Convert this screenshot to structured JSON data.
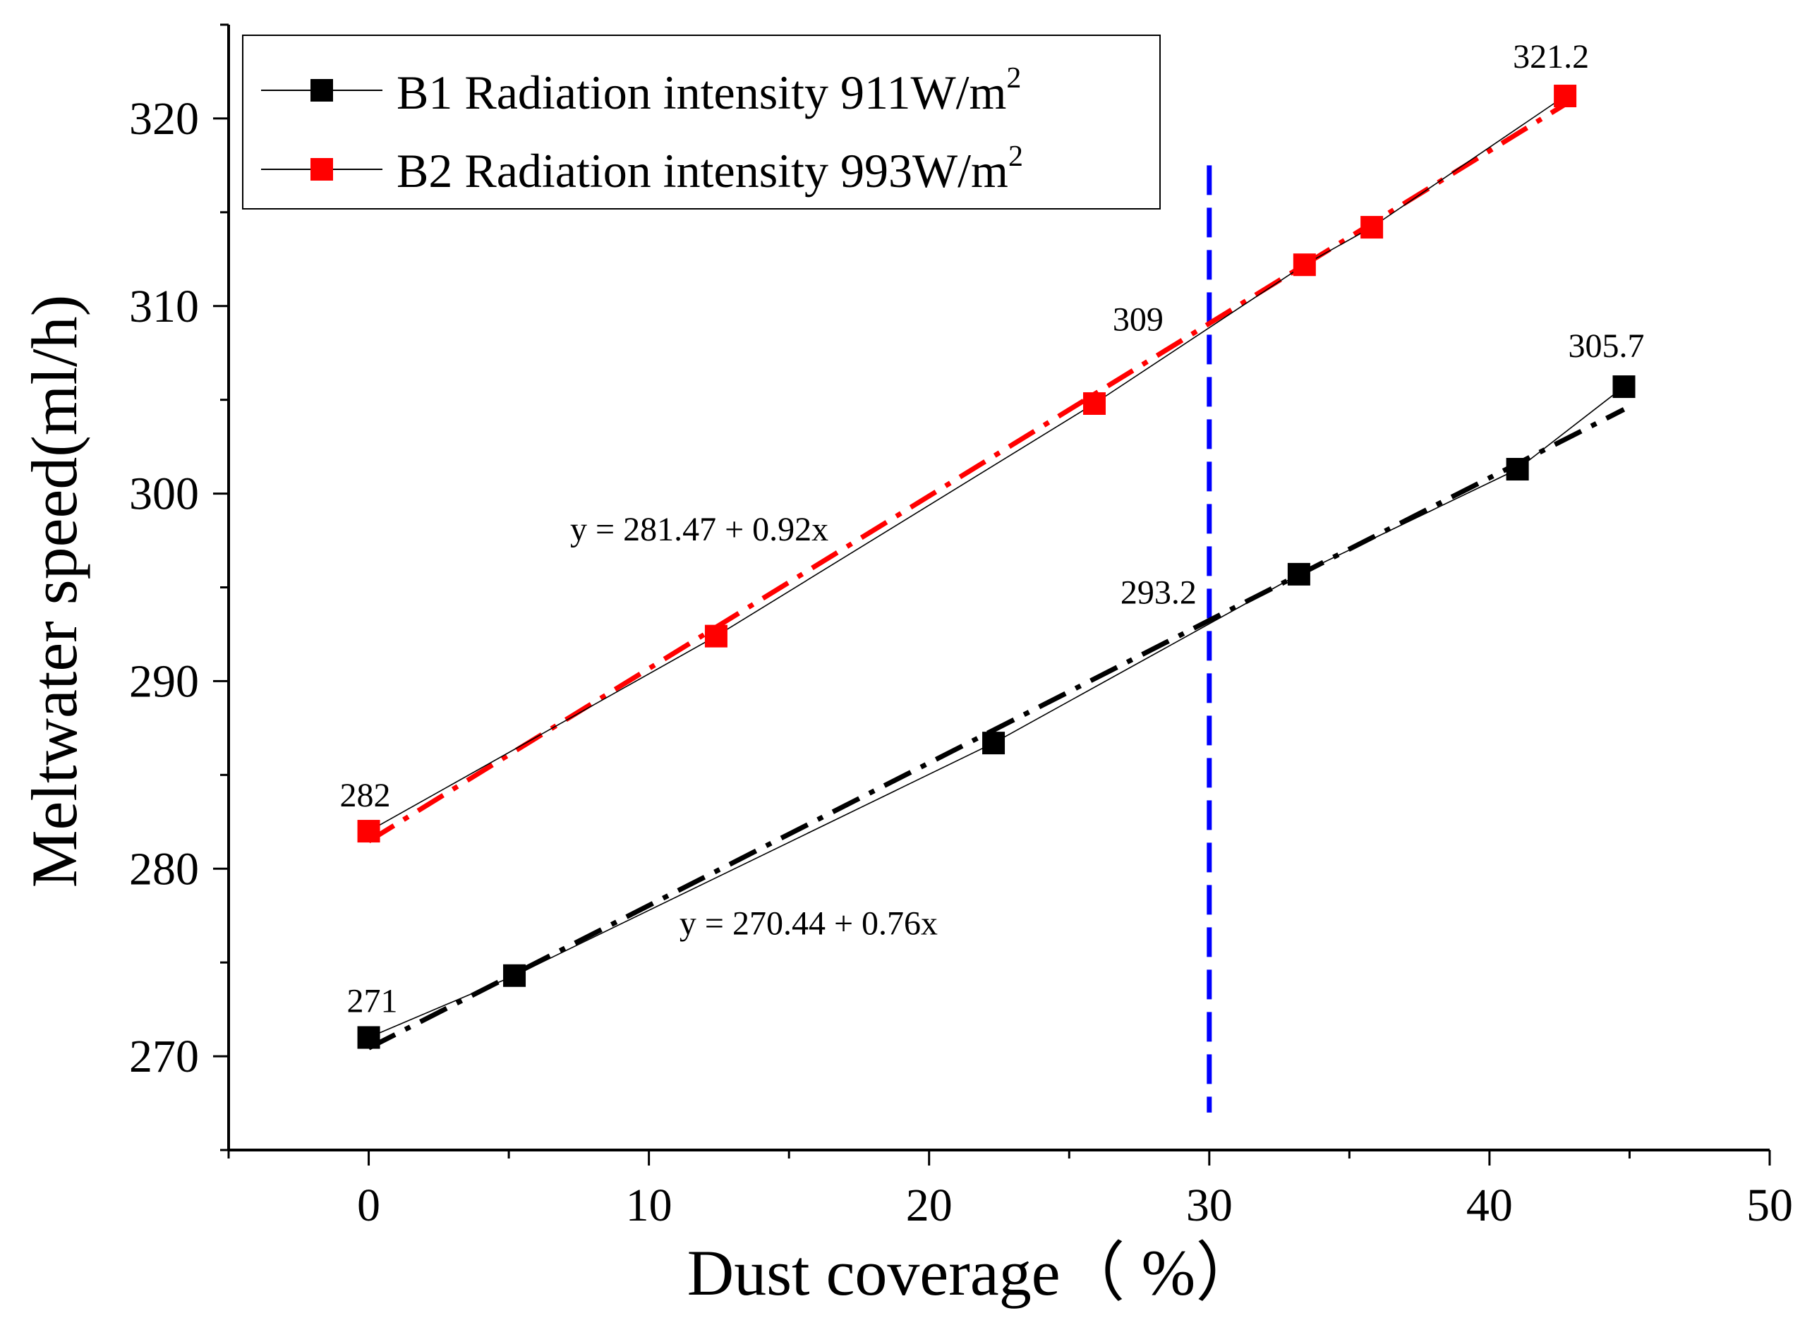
{
  "chart_data": {
    "type": "line",
    "xlabel": "Dust coverage（  %）",
    "ylabel": "Meltwater speed(ml/h)",
    "xlim": [
      -5,
      50
    ],
    "ylim": [
      265,
      325
    ],
    "x_ticks": [
      "0",
      "10",
      "20",
      "30",
      "40",
      "50"
    ],
    "y_ticks": [
      "270",
      "280",
      "290",
      "300",
      "310",
      "320"
    ],
    "legend_position": "top-left",
    "reference_line": {
      "x": 30,
      "y_range": [
        267,
        317.5
      ],
      "color": "#0000ff",
      "style": "dashed"
    },
    "series": [
      {
        "name": "B1",
        "legend_text": "B1 Radiation intensity 911W/m",
        "legend_sup": "2",
        "color": "#000000",
        "marker": "square",
        "x": [
          0,
          5.2,
          22.3,
          33.2,
          41.0,
          44.8
        ],
        "y": [
          271,
          274.3,
          286.7,
          295.7,
          301.3,
          305.7
        ],
        "fit": {
          "intercept": 270.44,
          "slope": 0.76,
          "x_range": [
            0,
            44.8
          ],
          "style": "dash-dot",
          "color": "#000000"
        }
      },
      {
        "name": "B2",
        "legend_text": "B2 Radiation intensity 993W/m",
        "legend_sup": "2",
        "color": "#ff0000",
        "marker": "square",
        "x": [
          0,
          12.4,
          25.9,
          33.4,
          35.8,
          42.7
        ],
        "y": [
          282,
          292.4,
          304.8,
          312.2,
          314.2,
          321.2
        ],
        "fit": {
          "intercept": 281.47,
          "slope": 0.92,
          "x_range": [
            0,
            42.7
          ],
          "style": "dash-dot",
          "color": "#ff0000"
        }
      }
    ],
    "annotations": [
      {
        "text": "282",
        "x": 0,
        "y": 282
      },
      {
        "text": "271",
        "x": 0,
        "y": 271
      },
      {
        "text": "321.2",
        "x": 42.7,
        "y": 321.2
      },
      {
        "text": "305.7",
        "x": 44.8,
        "y": 305.7
      },
      {
        "text": "309",
        "x": 30,
        "y": 309
      },
      {
        "text": "293.2",
        "x": 30,
        "y": 293.2
      },
      {
        "text": "y = 281.47 + 0.92x",
        "x": 11.8,
        "y": 297.5
      },
      {
        "text": "y = 270.44 + 0.76x",
        "x": 15.7,
        "y": 276.5
      }
    ]
  }
}
